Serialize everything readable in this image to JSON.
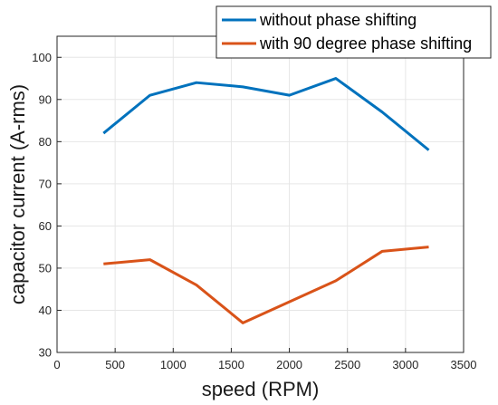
{
  "chart_data": {
    "type": "line",
    "xlabel": "speed (RPM)",
    "ylabel": "capacitor current (A-rms)",
    "xlim": [
      0,
      3500
    ],
    "ylim": [
      30,
      105
    ],
    "xticks": [
      0,
      500,
      1000,
      1500,
      2000,
      2500,
      3000,
      3500
    ],
    "yticks": [
      30,
      40,
      50,
      60,
      70,
      80,
      90,
      100
    ],
    "grid": true,
    "legend_position": "top-right",
    "x": [
      400,
      800,
      1200,
      1600,
      2000,
      2400,
      2800,
      3200
    ],
    "series": [
      {
        "name": "without phase shifting",
        "color": "#0072BD",
        "values": [
          82,
          91,
          94,
          93,
          91,
          95,
          87,
          78
        ]
      },
      {
        "name": "with 90 degree phase shifting",
        "color": "#D95319",
        "values": [
          51,
          52,
          46,
          37,
          42,
          47,
          54,
          55
        ]
      }
    ]
  }
}
